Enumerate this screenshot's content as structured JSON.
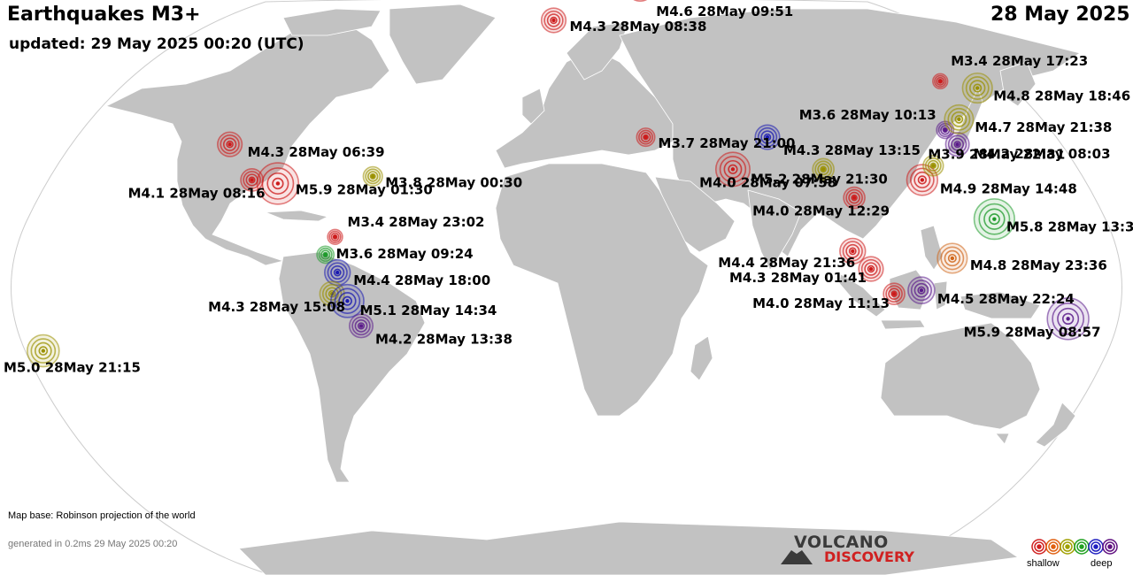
{
  "header": {
    "title": "Earthquakes M3+",
    "updated": "updated: 29 May 2025 00:20 (UTC)",
    "date": "28 May 2025"
  },
  "footer": {
    "map_base": "Map base: Robinson projection of the world",
    "generated": "generated in 0.2ms 29 May 2025 00:20"
  },
  "logo": {
    "line1": "VOLCANO",
    "line2": "DISCOVERY"
  },
  "legend": {
    "shallow": "shallow",
    "deep": "deep",
    "colors": [
      "#d02020",
      "#e06010",
      "#a0a000",
      "#20a020",
      "#2020c0",
      "#601080"
    ]
  },
  "colors": {
    "red": "#cc1a1a",
    "orange": "#d0661a",
    "olive": "#9a9000",
    "green": "#1d9a2a",
    "blue": "#1a1ab0",
    "purple": "#5a1a8a",
    "land": "#c2c2c2",
    "ocean": "#ffffff"
  },
  "quakes": [
    {
      "label": "M4.6 28May 09:51",
      "color": "red",
      "mag": 4.6,
      "lon": 42,
      "lat": 84
    },
    {
      "label": "M4.3 28May 08:38",
      "color": "red",
      "mag": 4.3,
      "lon": -6,
      "lat": 71
    },
    {
      "label": "M3.7 28May 21:00",
      "color": "red",
      "mag": 3.7,
      "lon": 28,
      "lat": 36
    },
    {
      "label": "M4.3 28May 13:15",
      "color": "blue",
      "mag": 4.3,
      "lon": 71,
      "lat": 36
    },
    {
      "label": "M5.2 28May 21:30",
      "color": "red",
      "mag": 5.2,
      "lon": 57,
      "lat": 27
    },
    {
      "label": "M4.0 28May 07:58",
      "color": "olive",
      "mag": 4.0,
      "lon": 88,
      "lat": 27
    },
    {
      "label": "M4.0 28May 12:29",
      "color": "red",
      "mag": 4.0,
      "lon": 97,
      "lat": 19
    },
    {
      "label": "M4.4 28May 21:36",
      "color": "red",
      "mag": 4.4,
      "lon": 95,
      "lat": 4
    },
    {
      "label": "M4.3 28May 01:41",
      "color": "red",
      "mag": 4.3,
      "lon": 101,
      "lat": -1
    },
    {
      "label": "M4.0 28May 11:13",
      "color": "red",
      "mag": 4.0,
      "lon": 109,
      "lat": -8
    },
    {
      "label": "M4.5 28May 22:24",
      "color": "purple",
      "mag": 4.5,
      "lon": 118,
      "lat": -7
    },
    {
      "label": "M4.8 28May 23:36",
      "color": "orange",
      "mag": 4.8,
      "lon": 128,
      "lat": 2
    },
    {
      "label": "M5.8 28May 13:3",
      "color": "green",
      "mag": 5.8,
      "lon": 143,
      "lat": 13
    },
    {
      "label": "M4.9 28May 14:48",
      "color": "red",
      "mag": 4.9,
      "lon": 121,
      "lat": 24
    },
    {
      "label": "M3.9 28May 22:31",
      "color": "olive",
      "mag": 3.9,
      "lon": 126,
      "lat": 28
    },
    {
      "label": "M4.2 28May 08:03",
      "color": "purple",
      "mag": 4.2,
      "lon": 137,
      "lat": 34
    },
    {
      "label": "M3.6 28May 10:13",
      "color": "purple",
      "mag": 3.6,
      "lon": 135,
      "lat": 38
    },
    {
      "label": "M4.7 28May 21:38",
      "color": "olive",
      "mag": 4.7,
      "lon": 142,
      "lat": 41
    },
    {
      "label": "M4.8 28May 18:46",
      "color": "olive",
      "mag": 4.8,
      "lon": 157,
      "lat": 50
    },
    {
      "label": "M3.4 28May 17:23",
      "color": "red",
      "mag": 3.4,
      "lon": 145,
      "lat": 52
    },
    {
      "label": "M5.9 28May 08:57",
      "color": "purple",
      "mag": 5.9,
      "lon": 168,
      "lat": -15
    },
    {
      "label": "M5.0 28May 21:15",
      "color": "olive",
      "mag": 5.0,
      "lon": -178,
      "lat": -24
    },
    {
      "label": "M4.3 28May 06:39",
      "color": "red",
      "mag": 4.3,
      "lon": -118,
      "lat": 34
    },
    {
      "label": "M4.1 28May 08:16",
      "color": "red",
      "mag": 4.1,
      "lon": -107,
      "lat": 24
    },
    {
      "label": "M5.9 28May 01:30",
      "color": "red",
      "mag": 5.9,
      "lon": -98,
      "lat": 23
    },
    {
      "label": "M3.8 28May 00:30",
      "color": "olive",
      "mag": 3.8,
      "lon": -66,
      "lat": 25
    },
    {
      "label": "M3.4 28May 23:02",
      "color": "red",
      "mag": 3.4,
      "lon": -77,
      "lat": 8
    },
    {
      "label": "M3.6 28May 09:24",
      "color": "green",
      "mag": 3.6,
      "lon": -80,
      "lat": 3
    },
    {
      "label": "M4.4 28May 18:00",
      "color": "blue",
      "mag": 4.4,
      "lon": -76,
      "lat": -2
    },
    {
      "label": "M4.3 28May 15:08",
      "color": "olive",
      "mag": 4.3,
      "lon": -78,
      "lat": -8
    },
    {
      "label": "M5.1 28May 14:34",
      "color": "blue",
      "mag": 5.1,
      "lon": -73,
      "lat": -10
    },
    {
      "label": "M4.2 28May 13:38",
      "color": "purple",
      "mag": 4.2,
      "lon": -69,
      "lat": -17
    }
  ]
}
